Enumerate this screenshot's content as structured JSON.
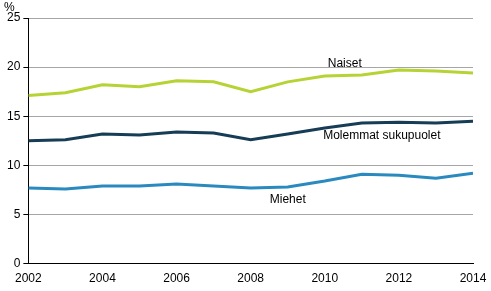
{
  "chart_data": {
    "type": "line",
    "y_label": "%",
    "x": [
      2002,
      2003,
      2004,
      2005,
      2006,
      2007,
      2008,
      2009,
      2010,
      2011,
      2012,
      2013,
      2014
    ],
    "series": [
      {
        "name": "Naiset",
        "color": "#b5d334",
        "values": [
          17.1,
          17.4,
          18.2,
          18.0,
          18.6,
          18.5,
          17.5,
          18.5,
          19.1,
          19.2,
          19.7,
          19.6,
          19.4
        ]
      },
      {
        "name": "Molemmat sukupuolet",
        "color": "#173c55",
        "values": [
          12.5,
          12.6,
          13.2,
          13.1,
          13.4,
          13.3,
          12.6,
          13.2,
          13.8,
          14.3,
          14.4,
          14.3,
          14.5
        ]
      },
      {
        "name": "Miehet",
        "color": "#2a8abf",
        "values": [
          7.7,
          7.6,
          7.9,
          7.9,
          8.1,
          7.9,
          7.7,
          7.8,
          8.4,
          9.1,
          9.0,
          8.7,
          9.2
        ]
      }
    ],
    "xlim": [
      2002,
      2014
    ],
    "xticks": [
      2002,
      2004,
      2006,
      2008,
      2010,
      2012,
      2014
    ],
    "ylim": [
      0,
      25
    ],
    "yticks": [
      0,
      5,
      10,
      15,
      20,
      25
    ],
    "grid": true
  }
}
